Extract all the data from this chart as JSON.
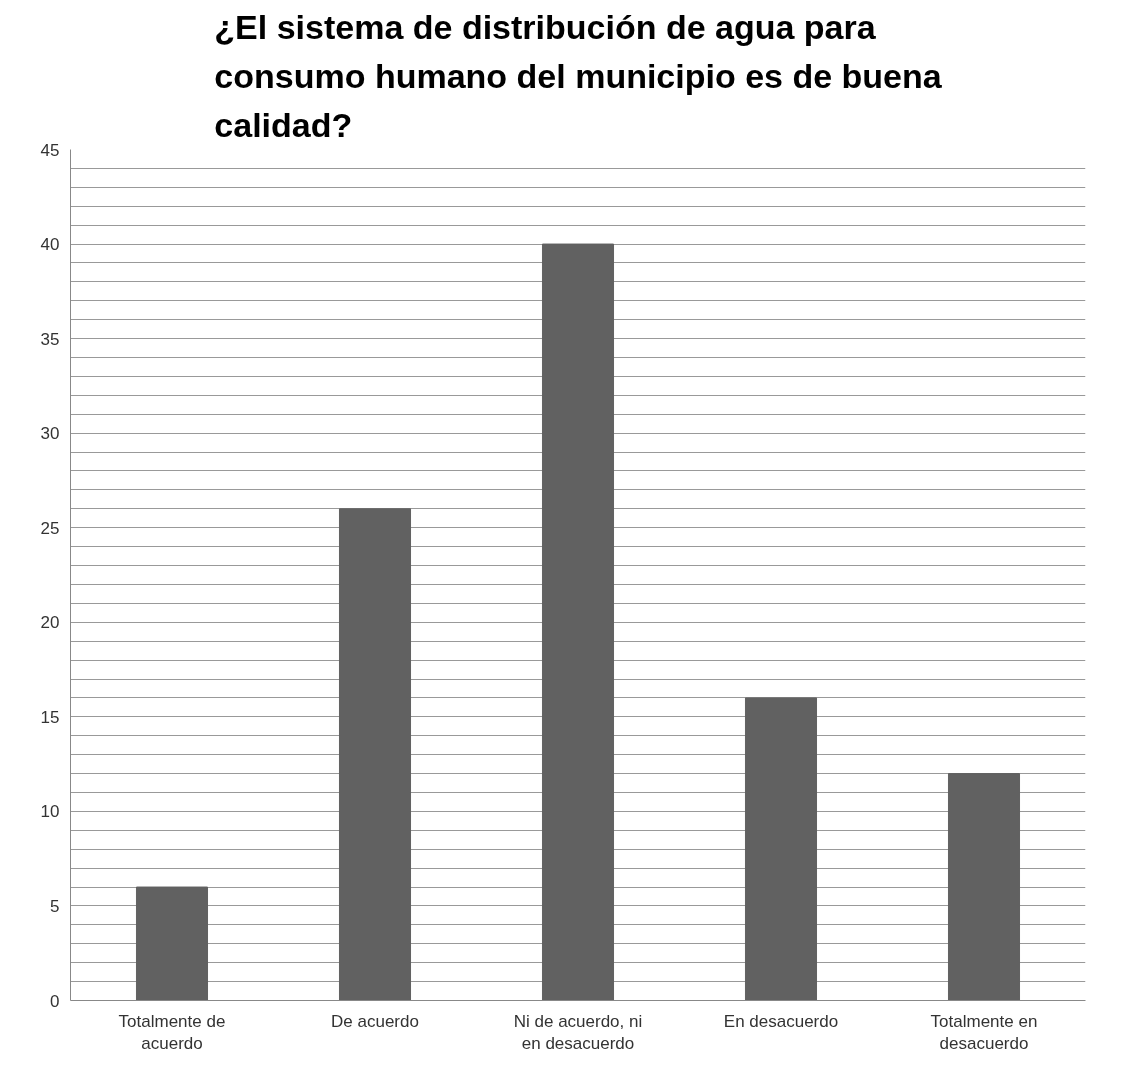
{
  "chart_data": {
    "type": "bar",
    "title": "¿El sistema de distribución de agua para consumo humano del municipio es de buena calidad?",
    "categories": [
      "Totalmente de acuerdo",
      "De acuerdo",
      "Ni de acuerdo, ni en desacuerdo",
      "En desacuerdo",
      "Totalmente en desacuerdo"
    ],
    "values": [
      6,
      26,
      40,
      16,
      12
    ],
    "color": "#616161",
    "ylim": [
      0,
      45
    ],
    "yticks": [
      0,
      {
        "value": 1,
        "label": null
      },
      {
        "value": 2,
        "label": null
      },
      {
        "value": 3,
        "label": null
      },
      {
        "value": 4,
        "label": null
      },
      5,
      {
        "value": 6,
        "label": null
      },
      {
        "value": 7,
        "label": null
      },
      {
        "value": 8,
        "label": null
      },
      {
        "value": 9,
        "label": null
      },
      10,
      {
        "value": 11,
        "label": null
      },
      {
        "value": 12,
        "label": null
      },
      {
        "value": 13,
        "label": null
      },
      {
        "value": 14,
        "label": null
      },
      15,
      {
        "value": 16,
        "label": null
      },
      {
        "value": 17,
        "label": null
      },
      {
        "value": 18,
        "label": null
      },
      {
        "value": 19,
        "label": null
      },
      20,
      {
        "value": 21,
        "label": null
      },
      {
        "value": 22,
        "label": null
      },
      {
        "value": 23,
        "label": null
      },
      {
        "value": 24,
        "label": null
      },
      25,
      {
        "value": 26,
        "label": null
      },
      {
        "value": 27,
        "label": null
      },
      {
        "value": 28,
        "label": null
      },
      {
        "value": 29,
        "label": null
      },
      30,
      {
        "value": 31,
        "label": null
      },
      {
        "value": 32,
        "label": null
      },
      {
        "value": 33,
        "label": null
      },
      {
        "value": 34,
        "label": null
      },
      35,
      {
        "value": 36,
        "label": null
      },
      {
        "value": 37,
        "label": null
      },
      {
        "value": 38,
        "label": null
      },
      {
        "value": 39,
        "label": null
      },
      40,
      {
        "value": 41,
        "label": null
      },
      {
        "value": 42,
        "label": null
      },
      {
        "value": 43,
        "label": null
      },
      {
        "value": 44,
        "label": null
      },
      45
    ],
    "grid": "y"
  }
}
